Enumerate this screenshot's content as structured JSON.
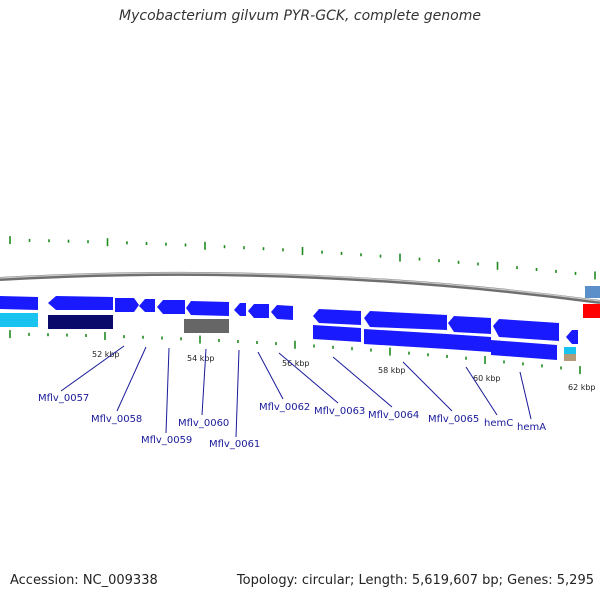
{
  "title": "Mycobacterium gilvum PYR-GCK, complete genome",
  "footer": {
    "accession": "Accession: NC_009338",
    "summary": "Topology: circular; Length: 5,619,607 bp; Genes: 5,295"
  },
  "colors": {
    "cds_forward": "#1a1aff",
    "cds_reverse_dark": "#0a0a6b",
    "cyan": "#19c3f0",
    "gray": "#666666",
    "steel": "#5b8fc9",
    "red": "#ff0000",
    "tan": "#b39b7a",
    "tick_green": "#1f8a1f",
    "label_blue": "#1a1a9a",
    "backbone": "#888888"
  },
  "scale_labels": [
    "52 kbp",
    "54 kbp",
    "56 kbp",
    "58 kbp",
    "60 kbp",
    "62 kbp"
  ],
  "gene_labels": [
    "Mflv_0057",
    "Mflv_0058",
    "Mflv_0059",
    "Mflv_0060",
    "Mflv_0061",
    "Mflv_0062",
    "Mflv_0063",
    "Mflv_0064",
    "Mflv_0065",
    "hemC",
    "hemA"
  ]
}
